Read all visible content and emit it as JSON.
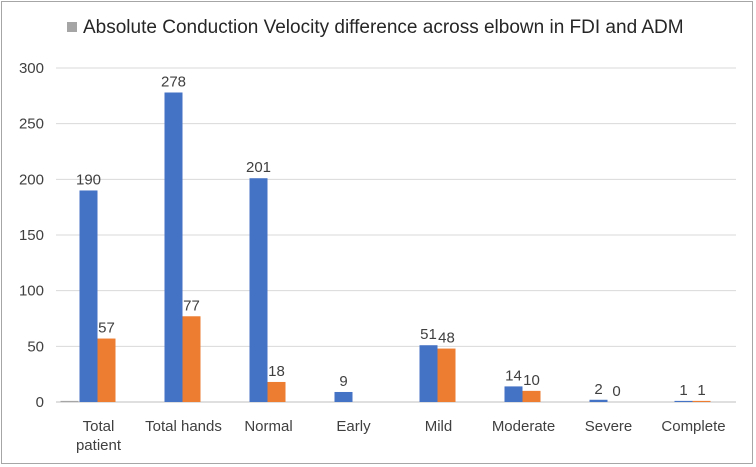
{
  "chart_data": {
    "type": "bar",
    "title": "Absolute Conduction Velocity difference across elbown in FDI and ADM",
    "legend_position": "top-left",
    "legend_swatch_color": "#a5a5a5",
    "categories": [
      [
        "Total",
        "patient"
      ],
      [
        "Total hands"
      ],
      [
        "Normal"
      ],
      [
        "Early"
      ],
      [
        "Mild"
      ],
      [
        "Moderate"
      ],
      [
        "Severe"
      ],
      [
        "Complete"
      ]
    ],
    "series": [
      {
        "color": "#4472c4",
        "values": [
          190,
          278,
          201,
          9,
          51,
          14,
          2,
          1
        ],
        "labels": [
          "190",
          "278",
          "201",
          "9",
          "51",
          "14",
          "2",
          "1"
        ]
      },
      {
        "color": "#ed7d31",
        "values": [
          57,
          77,
          18,
          0,
          48,
          10,
          0,
          1
        ],
        "labels": [
          "57",
          "77",
          "18",
          "",
          "48",
          "10",
          "0",
          "1"
        ]
      },
      {
        "color": "#a5a5a5",
        "values": [
          1,
          0,
          0,
          0,
          0,
          0,
          0,
          0
        ],
        "labels": [
          "",
          "",
          "",
          "",
          "",
          "",
          "",
          ""
        ]
      }
    ],
    "ylim": [
      0,
      300
    ],
    "yticks": [
      0,
      50,
      100,
      150,
      200,
      250,
      300
    ],
    "ytick_labels": [
      "0",
      "50",
      "100",
      "150",
      "200",
      "250",
      "300"
    ],
    "grid": "horizontal",
    "grid_color": "#d9d9d9"
  }
}
